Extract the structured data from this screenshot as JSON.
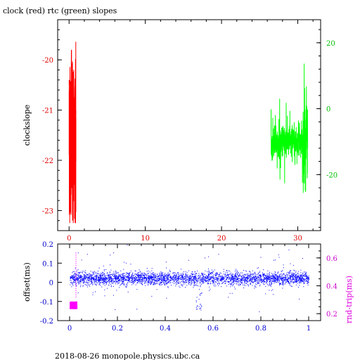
{
  "title": "clock (red) rtc (green) slopes",
  "footer": "2018-08-26  monopole.physics.ubc.ca",
  "colors": {
    "red": "#ff0000",
    "green": "#00ff00",
    "blue": "#0000ff",
    "magenta": "#ff00ff",
    "axis": "#000000"
  },
  "chart_data": [
    {
      "type": "line",
      "ylabel": "clockslope",
      "xlim": [
        -1.5,
        33
      ],
      "ylim": [
        -23.4,
        -19.2
      ],
      "y2lim": [
        -37,
        27
      ],
      "x_ticks": [
        "0",
        "10",
        "20",
        "30"
      ],
      "x_tick_values": [
        0,
        10,
        20,
        30
      ],
      "y_ticks": [
        "-20",
        "-21",
        "-22",
        "-23"
      ],
      "y_tick_values": [
        -20,
        -21,
        -22,
        -23
      ],
      "y2_ticks": [
        "20",
        "0",
        "-20"
      ],
      "y2_tick_values": [
        20,
        0,
        -20
      ],
      "series": [
        {
          "axis": "left",
          "color": "#ff0000",
          "x_range": [
            0.0,
            0.9
          ],
          "center": -21.6,
          "spread": 1.6,
          "x": [
            0.0,
            0.15,
            0.3,
            0.45,
            0.6,
            0.75,
            0.9
          ],
          "y": [
            -20.4,
            -23.0,
            -19.8,
            -23.2,
            -20.2,
            -22.8,
            -21.0
          ]
        },
        {
          "axis": "right",
          "color": "#00ff00",
          "x_range": [
            26.5,
            31.3
          ],
          "center": -10,
          "spread": 8,
          "x": [
            26.5,
            28.0,
            29.0,
            30.0,
            30.8,
            31.0,
            31.3
          ],
          "y": [
            -10,
            -18,
            2,
            -12,
            12,
            24,
            -20
          ]
        }
      ]
    },
    {
      "type": "scatter",
      "ylabel": "offset(ms)",
      "y2label": "rnd-trip(ms)",
      "xlim": [
        -0.05,
        1.05
      ],
      "ylim": [
        -0.2,
        0.2
      ],
      "y2lim": [
        0.15,
        0.7
      ],
      "x_ticks": [
        "0",
        "0.2",
        "0.4",
        "0.6",
        "0.8",
        "1"
      ],
      "x_tick_values": [
        0,
        0.2,
        0.4,
        0.6,
        0.8,
        1
      ],
      "y_ticks": [
        "0.2",
        "0.1",
        "0",
        "-0.1",
        "-0.2"
      ],
      "y_tick_values": [
        0.2,
        0.1,
        0,
        -0.1,
        -0.2
      ],
      "y2_ticks": [
        "0.6",
        "0.4",
        "0.2"
      ],
      "y2_tick_values": [
        0.6,
        0.4,
        0.2
      ],
      "series": [
        {
          "axis": "left",
          "color": "#0000ff",
          "x_range": [
            0.0,
            1.0
          ],
          "center": 0.02,
          "spread": 0.03,
          "dip_x": 0.54,
          "dip_y": -0.15
        },
        {
          "axis": "right",
          "color": "#ff00ff",
          "x_range": [
            0.0,
            0.03
          ],
          "center": 0.26,
          "spread": 0.05,
          "spike_x": 0.025,
          "spike_y": 0.65
        }
      ]
    }
  ]
}
